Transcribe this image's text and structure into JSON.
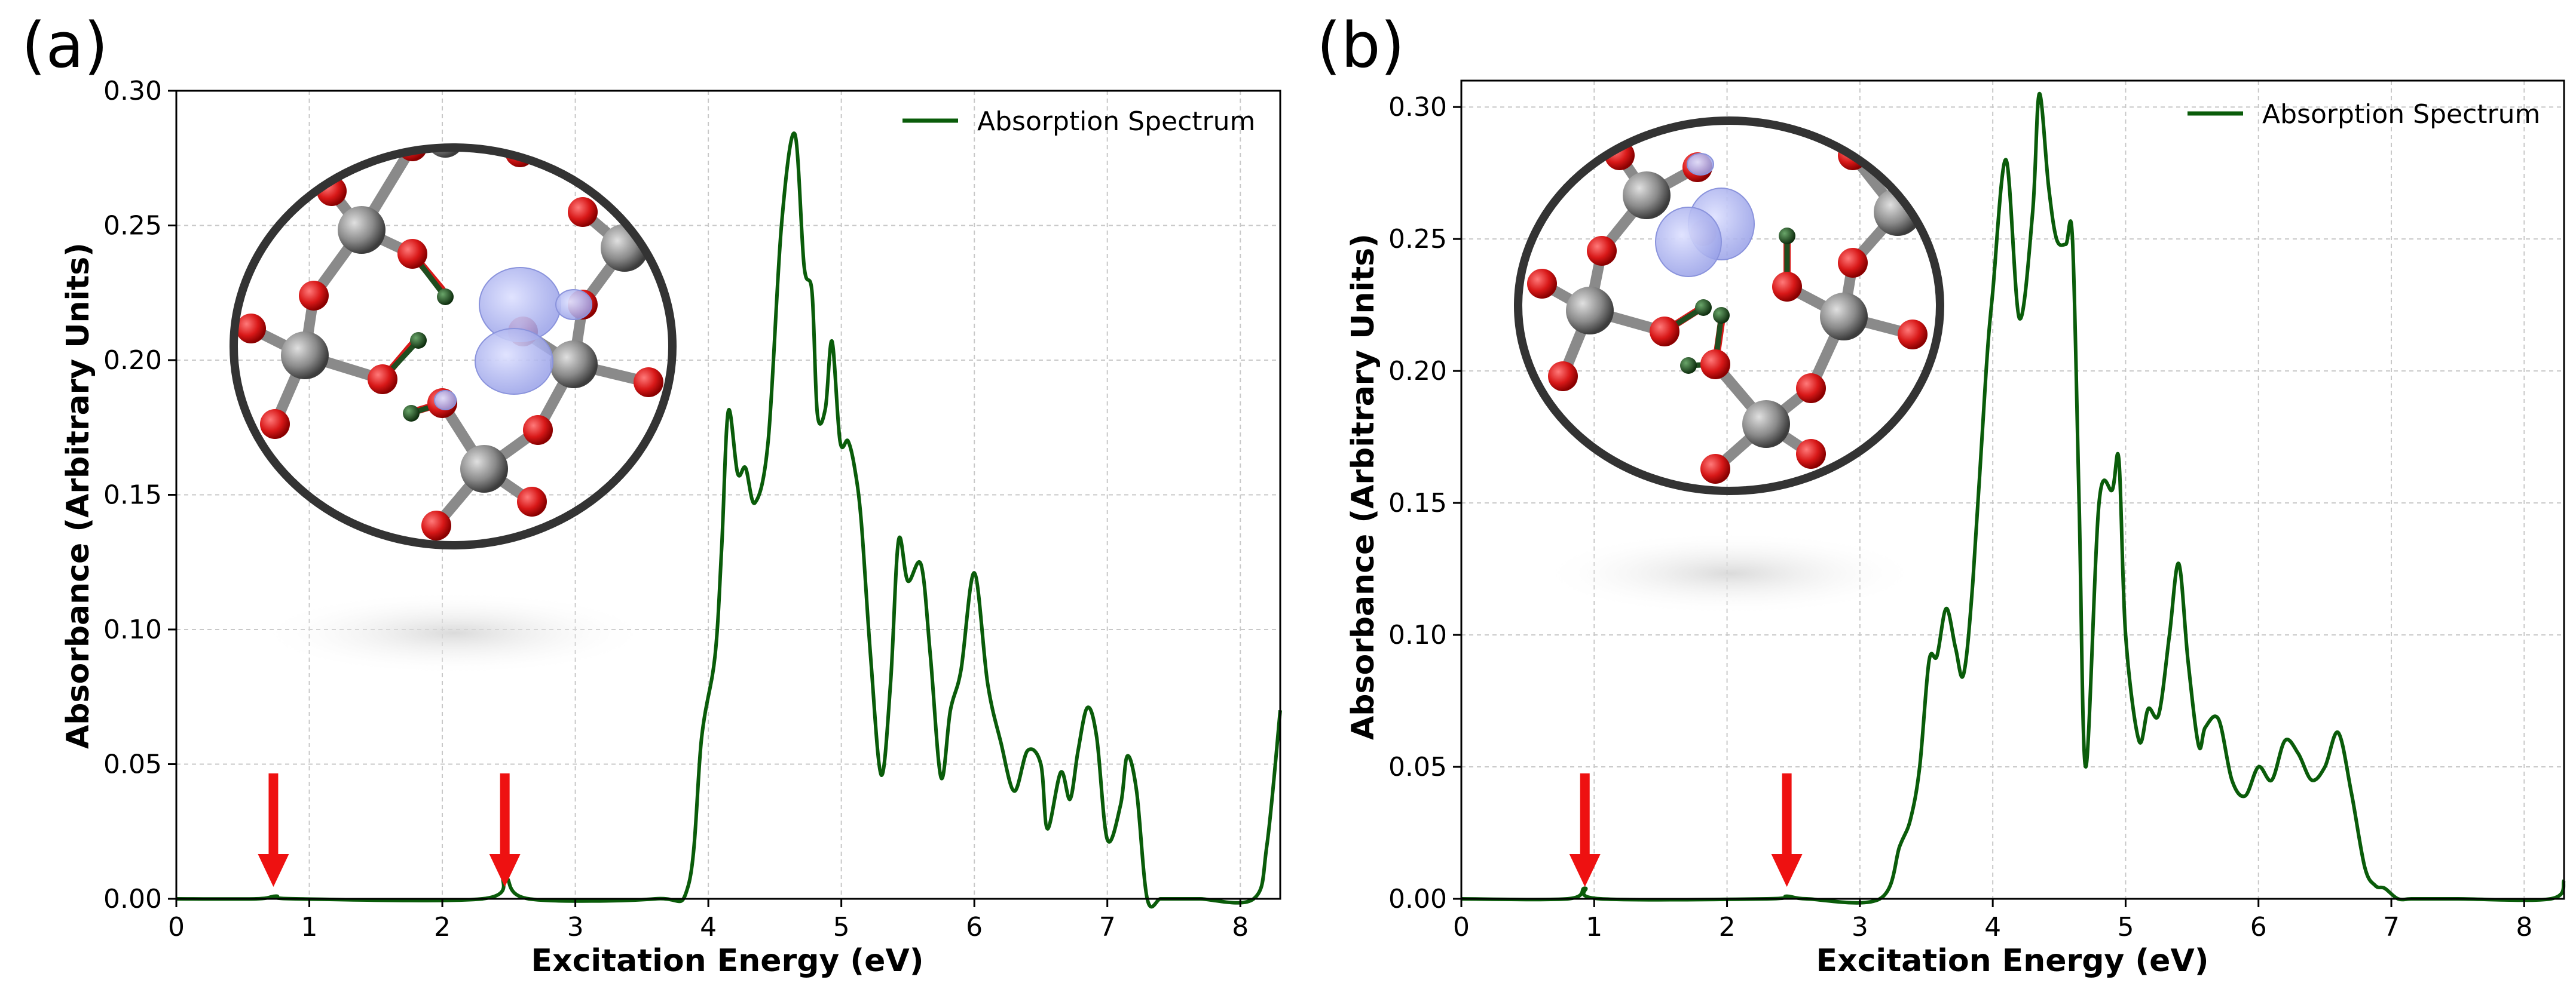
{
  "figure": {
    "panels": [
      {
        "id": "a",
        "label": "(a)",
        "legend": "Absorption Spectrum",
        "xlabel": "Excitation Energy (eV)",
        "ylabel": "Absorbance (Arbitrary Units)"
      },
      {
        "id": "b",
        "label": "(b)",
        "legend": "Absorption Spectrum",
        "xlabel": "Excitation Energy (eV)",
        "ylabel": "Absorbance (Arbitrary Units)"
      }
    ]
  },
  "colors": {
    "line": "#0a5c0a",
    "arrow": "#ee1111",
    "frame": "#000000",
    "grid": "#c8c8c8",
    "oxygen": "#d81818",
    "silicon": "#8a8a8a",
    "hydrogen": "#1f4d1f",
    "orbital": "#a9b0ee"
  },
  "chart_data": [
    {
      "type": "line",
      "title": "(a)",
      "xlabel": "Excitation Energy (eV)",
      "ylabel": "Absorbance (Arbitrary Units)",
      "xlim": [
        0,
        8.3
      ],
      "ylim": [
        0,
        0.3
      ],
      "xticks": [
        0,
        1,
        2,
        3,
        4,
        5,
        6,
        7,
        8
      ],
      "yticks": [
        0.0,
        0.05,
        0.1,
        0.15,
        0.2,
        0.25,
        0.3
      ],
      "ytick_labels": [
        "0.00",
        "0.05",
        "0.10",
        "0.15",
        "0.20",
        "0.25",
        "0.30"
      ],
      "grid": true,
      "legend_position": "top-right",
      "series": [
        {
          "name": "Absorption Spectrum",
          "x": [
            0,
            0.6,
            0.75,
            0.9,
            2.3,
            2.47,
            2.65,
            3.6,
            3.85,
            3.95,
            4.05,
            4.1,
            4.15,
            4.22,
            4.28,
            4.35,
            4.45,
            4.55,
            4.65,
            4.72,
            4.78,
            4.82,
            4.88,
            4.93,
            4.99,
            5.05,
            5.1,
            5.15,
            5.22,
            5.3,
            5.37,
            5.43,
            5.5,
            5.6,
            5.67,
            5.75,
            5.82,
            5.9,
            6.0,
            6.1,
            6.2,
            6.3,
            6.4,
            6.5,
            6.55,
            6.65,
            6.72,
            6.78,
            6.85,
            6.92,
            7.0,
            7.1,
            7.15,
            7.22,
            7.3,
            7.4,
            7.5,
            7.55,
            7.65,
            7.7,
            8.1,
            8.2,
            8.3
          ],
          "y": [
            0.0,
            0.0,
            0.001,
            0.0,
            0.0,
            0.008,
            0.0,
            0.0,
            0.005,
            0.06,
            0.09,
            0.13,
            0.181,
            0.158,
            0.16,
            0.147,
            0.17,
            0.25,
            0.284,
            0.235,
            0.225,
            0.18,
            0.182,
            0.207,
            0.17,
            0.17,
            0.16,
            0.14,
            0.09,
            0.046,
            0.08,
            0.133,
            0.118,
            0.124,
            0.09,
            0.045,
            0.07,
            0.085,
            0.121,
            0.08,
            0.058,
            0.04,
            0.055,
            0.05,
            0.026,
            0.047,
            0.037,
            0.055,
            0.071,
            0.06,
            0.022,
            0.035,
            0.053,
            0.04,
            0.0,
            0.0,
            0.0,
            0.0,
            0.0,
            0.0,
            0.0,
            0.02,
            0.07
          ]
        }
      ],
      "annotations": [
        {
          "type": "arrow",
          "x": 0.73
        },
        {
          "type": "arrow",
          "x": 2.47
        }
      ]
    },
    {
      "type": "line",
      "title": "(b)",
      "xlabel": "Excitation Energy (eV)",
      "ylabel": "Absorbance (Arbitrary Units)",
      "xlim": [
        0,
        8.3
      ],
      "ylim": [
        0,
        0.31
      ],
      "xticks": [
        0,
        1,
        2,
        3,
        4,
        5,
        6,
        7,
        8
      ],
      "yticks": [
        0.0,
        0.05,
        0.1,
        0.15,
        0.2,
        0.25,
        0.3
      ],
      "ytick_labels": [
        "0.00",
        "0.05",
        "0.10",
        "0.15",
        "0.20",
        "0.25",
        "0.30"
      ],
      "grid": true,
      "legend_position": "top-right",
      "series": [
        {
          "name": "Absorption Spectrum",
          "x": [
            0,
            0.8,
            0.93,
            1.05,
            2.3,
            2.45,
            2.6,
            3.15,
            3.3,
            3.38,
            3.45,
            3.52,
            3.58,
            3.65,
            3.72,
            3.78,
            3.85,
            3.95,
            4.0,
            4.1,
            4.2,
            4.3,
            4.35,
            4.42,
            4.48,
            4.55,
            4.6,
            4.65,
            4.7,
            4.8,
            4.9,
            4.95,
            5.0,
            5.1,
            5.17,
            5.25,
            5.33,
            5.4,
            5.47,
            5.55,
            5.6,
            5.7,
            5.8,
            5.9,
            6.0,
            6.1,
            6.2,
            6.3,
            6.4,
            6.5,
            6.6,
            6.7,
            6.8,
            6.88,
            6.95,
            7.05,
            7.15,
            7.3,
            7.5,
            8.2,
            8.3
          ],
          "y": [
            0.0,
            0.0,
            0.004,
            0.0,
            0.0,
            0.001,
            0.0,
            0.0,
            0.02,
            0.03,
            0.05,
            0.09,
            0.092,
            0.11,
            0.095,
            0.085,
            0.12,
            0.2,
            0.23,
            0.28,
            0.22,
            0.26,
            0.305,
            0.27,
            0.25,
            0.248,
            0.25,
            0.15,
            0.05,
            0.15,
            0.155,
            0.166,
            0.1,
            0.06,
            0.072,
            0.07,
            0.1,
            0.127,
            0.09,
            0.058,
            0.065,
            0.068,
            0.045,
            0.039,
            0.05,
            0.045,
            0.06,
            0.055,
            0.045,
            0.05,
            0.063,
            0.04,
            0.012,
            0.005,
            0.004,
            0.0,
            0.0,
            0.0,
            0.0,
            0.0,
            0.007
          ]
        }
      ],
      "annotations": [
        {
          "type": "arrow",
          "x": 0.93
        },
        {
          "type": "arrow",
          "x": 2.45
        }
      ]
    }
  ]
}
